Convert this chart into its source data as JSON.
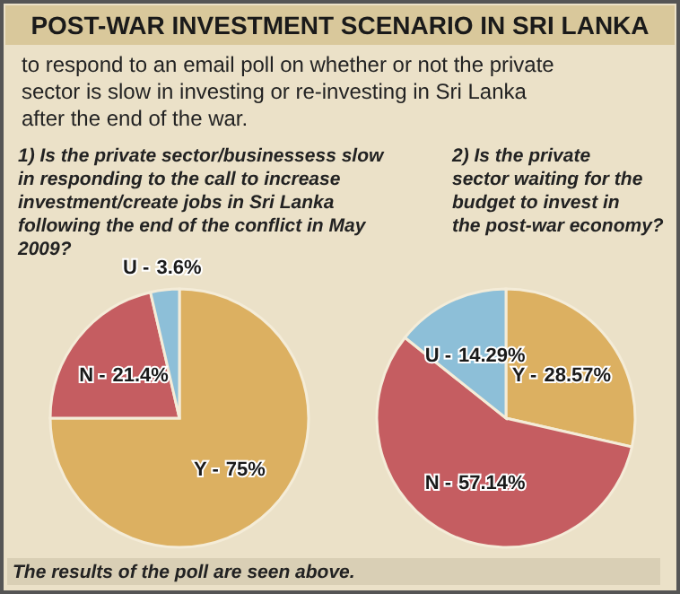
{
  "chart_data": [
    {
      "type": "other",
      "title": "POST-WAR INVESTMENT SCENARIO IN SRI LANKA",
      "subtitle": "to respond to an email poll on whether or not the private sector is slow in investing or re-investing in Sri Lanka after the end of the war.",
      "annotations": [
        "The results of the poll are seen above."
      ]
    },
    {
      "type": "pie",
      "title": "1) Is the private sector/businessess slow in responding to the call to increase investment/create jobs in Sri Lanka following the end of the conflict in May 2009?",
      "categories": [
        "Y -",
        "N -",
        "U -"
      ],
      "values": [
        75,
        21.4,
        3.6
      ],
      "colors": [
        "#dcb061",
        "#c55d61",
        "#8dbfd8"
      ],
      "value_labels": [
        "75%",
        "21.4%",
        "3.6%"
      ]
    },
    {
      "type": "pie",
      "title": "2) Is the private sector waiting for the budget to invest in the post-war economy?",
      "categories": [
        "Y -",
        "N -",
        "U -"
      ],
      "values": [
        28.57,
        57.14,
        14.29
      ],
      "colors": [
        "#dcb061",
        "#c55d61",
        "#8dbfd8"
      ],
      "value_labels": [
        "28.57%",
        "57.14%",
        "14.29%"
      ]
    }
  ]
}
